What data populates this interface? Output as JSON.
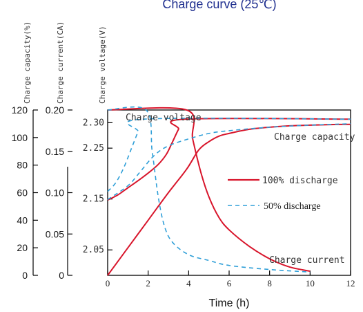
{
  "chart_data": {
    "type": "line",
    "title": "Charge curve (25℃)",
    "xlabel": "Time (h)",
    "x_ticks": [
      "0",
      "2",
      "4",
      "6",
      "8",
      "10",
      "12"
    ],
    "xlim": [
      0,
      12
    ],
    "axes": [
      {
        "label": "Charge capacity(%)",
        "ylim": [
          0,
          120
        ],
        "ticks": [
          "0",
          "20",
          "40",
          "60",
          "80",
          "100",
          "120"
        ]
      },
      {
        "label": "Charge current(CA)",
        "ylim": [
          0,
          0.2
        ],
        "ticks": [
          "0",
          "0.05",
          "0.10",
          "0.15",
          "0.20"
        ]
      },
      {
        "label": "Charge voltage(V)",
        "ylim": [
          2.0,
          2.325
        ],
        "ticks": [
          "2.05",
          "2.15",
          "2.25",
          "2.30"
        ]
      }
    ],
    "legend": [
      {
        "label": "100% discharge",
        "style": "solid",
        "color": "#d8152b"
      },
      {
        "label": "50% discharge",
        "style": "dashed",
        "color": "#2f9fd8"
      }
    ],
    "annotations": [
      "Charge voltage",
      "Charge capacity",
      "Charge current"
    ],
    "series": [
      {
        "group": "100% discharge",
        "curve": "Charge voltage",
        "axis": "Charge voltage(V)",
        "x": [
          0,
          0.5,
          1.0,
          1.5,
          2.0,
          2.5,
          2.9,
          3.2,
          3.5,
          3.8,
          12
        ],
        "y": [
          2.148,
          2.158,
          2.172,
          2.186,
          2.201,
          2.218,
          2.238,
          2.262,
          2.287,
          2.307,
          2.307
        ]
      },
      {
        "group": "100% discharge",
        "curve": "Charge capacity",
        "axis": "Charge capacity(%)",
        "x": [
          0,
          1,
          2,
          3,
          3.9,
          4.5,
          5,
          5.5,
          6,
          7,
          8,
          9,
          10,
          11,
          12
        ],
        "y": [
          0,
          20,
          40,
          60,
          77,
          91,
          97,
          101,
          103,
          106,
          107.5,
          108.5,
          109,
          109.4,
          109.6
        ]
      },
      {
        "group": "100% discharge",
        "curve": "Charge current",
        "axis": "Charge current(CA)",
        "x": [
          0,
          3.9,
          4.2,
          4.6,
          5.0,
          5.5,
          6,
          7,
          8,
          9,
          10
        ],
        "y": [
          0.2,
          0.2,
          0.165,
          0.125,
          0.095,
          0.07,
          0.055,
          0.035,
          0.02,
          0.01,
          0.005
        ]
      },
      {
        "group": "50% discharge",
        "curve": "Charge voltage",
        "axis": "Charge voltage(V)",
        "x": [
          0,
          0.4,
          0.8,
          1.2,
          1.5,
          1.8,
          12
        ],
        "y": [
          2.165,
          2.182,
          2.212,
          2.252,
          2.282,
          2.307,
          2.307
        ]
      },
      {
        "group": "50% discharge",
        "curve": "Charge capacity",
        "axis": "Charge capacity(%)",
        "x": [
          0,
          1,
          1.6,
          2.3,
          3.0,
          4,
          5,
          6,
          8,
          10,
          12
        ],
        "y": [
          55,
          65,
          75,
          87,
          94,
          99,
          103,
          105,
          107.5,
          109,
          110
        ]
      },
      {
        "group": "50% discharge",
        "curve": "Charge current",
        "axis": "Charge current(CA)",
        "x": [
          0,
          1.9,
          2.2,
          2.5,
          2.8,
          3.2,
          4,
          5,
          6,
          8,
          10
        ],
        "y": [
          0.2,
          0.2,
          0.15,
          0.095,
          0.06,
          0.04,
          0.025,
          0.018,
          0.012,
          0.007,
          0.004
        ]
      }
    ]
  }
}
